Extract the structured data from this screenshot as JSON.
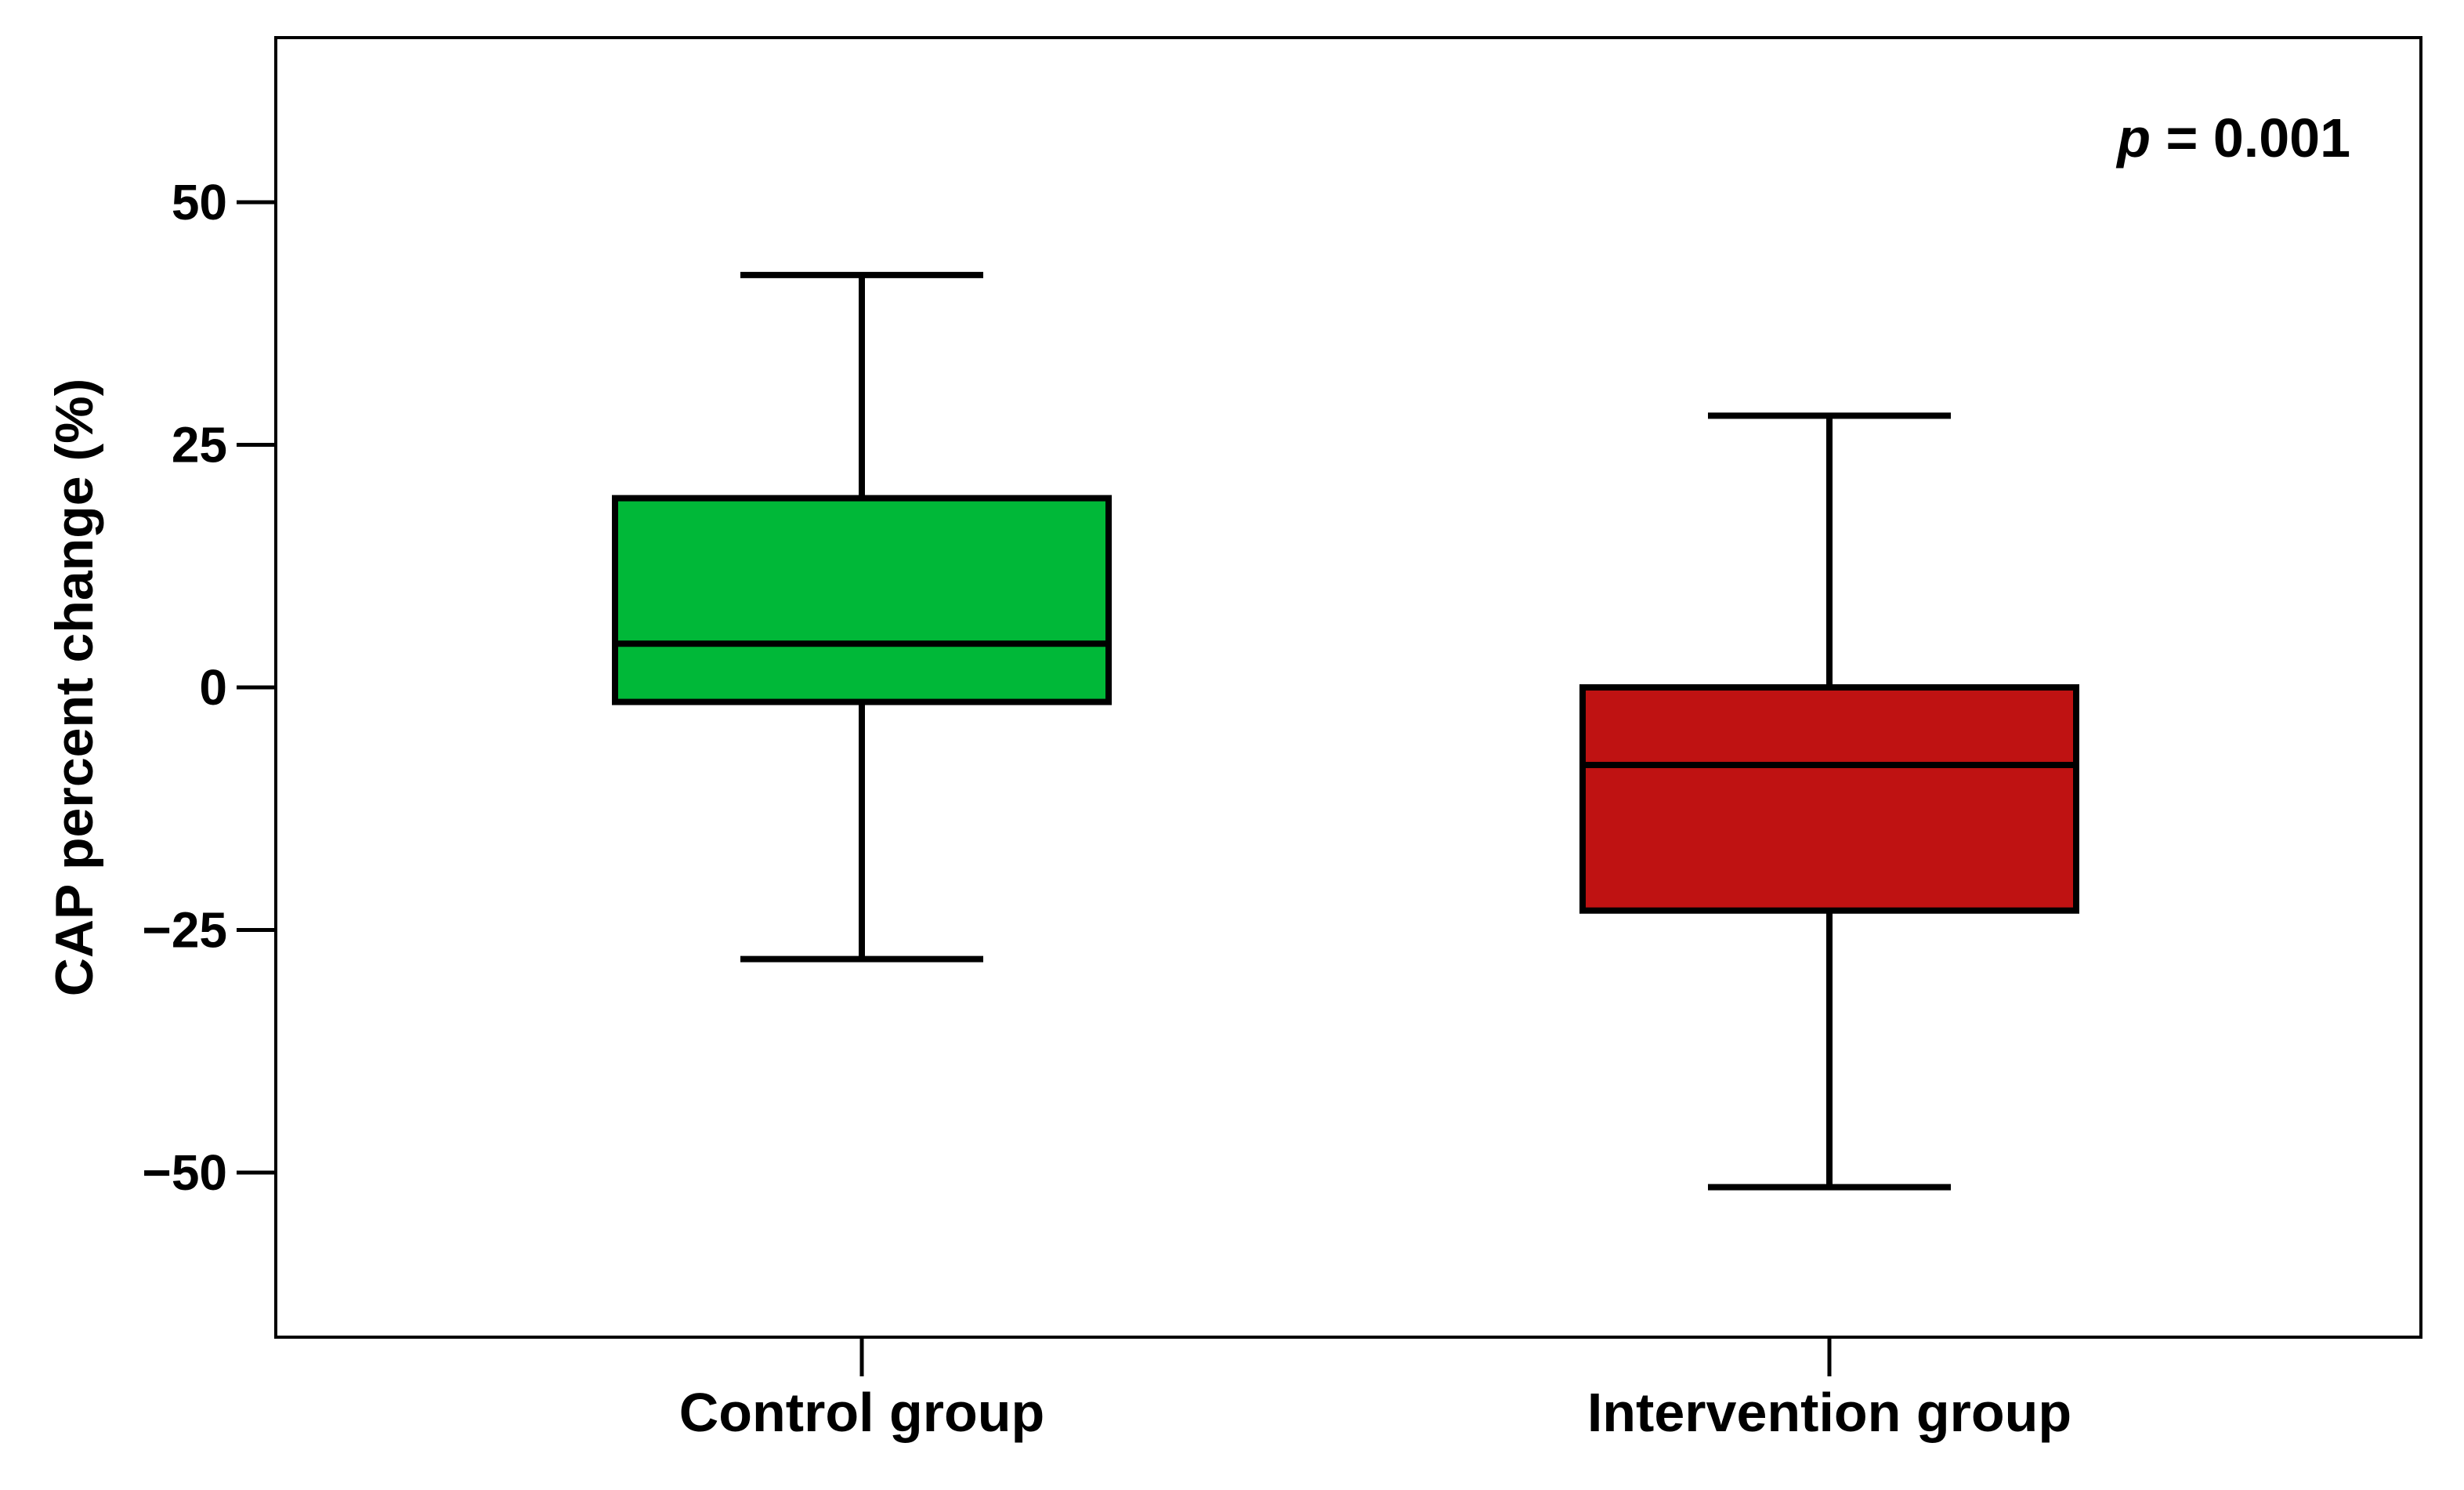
{
  "chart_data": {
    "type": "box",
    "categories": [
      "Control group",
      "Intervention group"
    ],
    "boxes": [
      {
        "category": "Control group",
        "whisker_low": -28,
        "q1": -1.5,
        "median": 4.5,
        "q3": 19.5,
        "whisker_high": 42.5,
        "color": "#00b838"
      },
      {
        "category": "Intervention group",
        "whisker_low": -51.5,
        "q1": -23,
        "median": -8,
        "q3": 0,
        "whisker_high": 28,
        "color": "#bf1212"
      }
    ],
    "ylabel": "CAP percent change (%)",
    "xlabel": "",
    "ylim": [
      -67,
      67
    ],
    "yticks": [
      50,
      25,
      0,
      -25,
      -50
    ],
    "ytick_labels": [
      "50",
      "25",
      "0",
      "−25",
      "−50"
    ],
    "grid": false,
    "annotation": {
      "italic_part": "p",
      "rest": " = 0.001"
    }
  }
}
